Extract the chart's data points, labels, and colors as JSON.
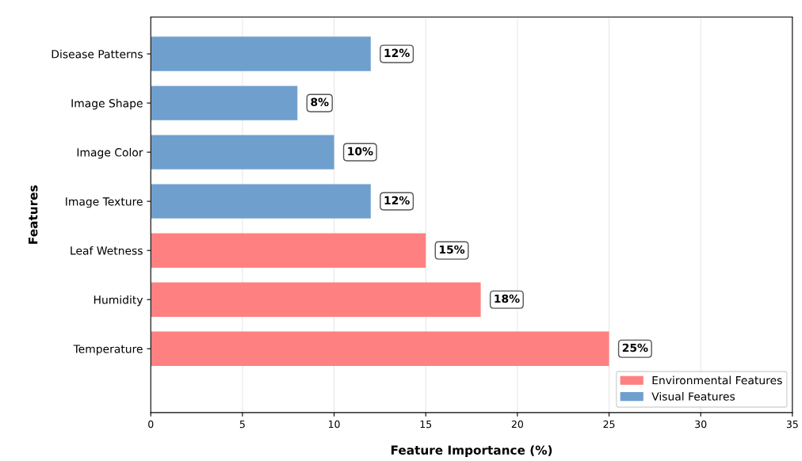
{
  "chart_data": {
    "type": "bar",
    "orientation": "horizontal",
    "xlabel": "Feature Importance (%)",
    "ylabel": "Features",
    "categories": [
      "Disease Patterns",
      "Image Shape",
      "Image Color",
      "Image Texture",
      "Leaf Wetness",
      "Humidity",
      "Temperature"
    ],
    "series": [
      {
        "name": "Environmental Features",
        "color": "#ff8080",
        "values": [
          null,
          null,
          null,
          null,
          15,
          18,
          25
        ],
        "value_labels": [
          null,
          null,
          null,
          null,
          "15%",
          "18%",
          "25%"
        ]
      },
      {
        "name": "Visual Features",
        "color": "#6fa0cd",
        "values": [
          12,
          8,
          10,
          12,
          null,
          null,
          null
        ],
        "value_labels": [
          "12%",
          "8%",
          "10%",
          "12%",
          null,
          null,
          null
        ]
      }
    ],
    "xlim": [
      0,
      35
    ],
    "xticks": [
      0,
      5,
      10,
      15,
      20,
      25,
      30,
      35
    ],
    "grid": "x",
    "legend": "bottom right"
  }
}
